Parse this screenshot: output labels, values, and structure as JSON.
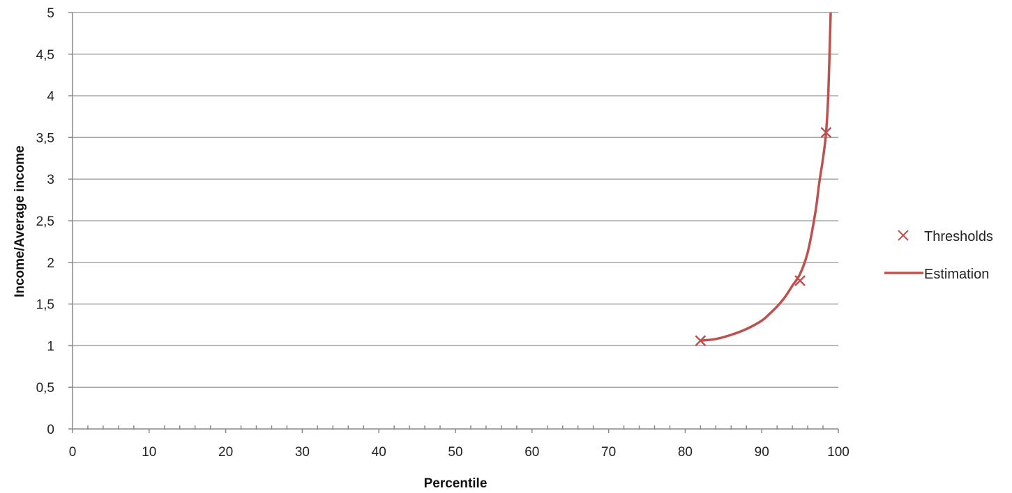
{
  "chart_data": {
    "type": "scatter",
    "title": "",
    "xlabel": "Percentile",
    "ylabel": "Income/Average income",
    "xlim": [
      0,
      100
    ],
    "ylim": [
      0,
      5
    ],
    "x_ticks": [
      0,
      10,
      20,
      30,
      40,
      50,
      60,
      70,
      80,
      90,
      100
    ],
    "x_tick_labels": [
      "0",
      "10",
      "20",
      "30",
      "40",
      "50",
      "60",
      "70",
      "80",
      "90",
      "100"
    ],
    "y_ticks": [
      0,
      0.5,
      1,
      1.5,
      2,
      2.5,
      3,
      3.5,
      4,
      4.5,
      5
    ],
    "y_tick_labels": [
      "0",
      "0,5",
      "1",
      "1,5",
      "2",
      "2,5",
      "3",
      "3,5",
      "4",
      "4,5",
      "5"
    ],
    "grid": "horizontal",
    "legend_position": "right",
    "series": [
      {
        "name": "Thresholds",
        "kind": "markers",
        "marker": "x",
        "color": "#c0504d",
        "x": [
          82,
          95,
          98.4
        ],
        "y": [
          1.06,
          1.78,
          3.56
        ]
      },
      {
        "name": "Estimation",
        "kind": "line",
        "color": "#c0504d",
        "x": [
          82,
          84,
          86,
          88,
          90,
          91,
          92,
          93,
          94,
          95,
          96,
          97,
          97.5,
          98,
          98.4,
          98.7,
          99
        ],
        "y": [
          1.06,
          1.08,
          1.13,
          1.2,
          1.3,
          1.38,
          1.47,
          1.58,
          1.72,
          1.86,
          2.12,
          2.6,
          2.95,
          3.25,
          3.56,
          4.05,
          5.0
        ]
      }
    ]
  }
}
